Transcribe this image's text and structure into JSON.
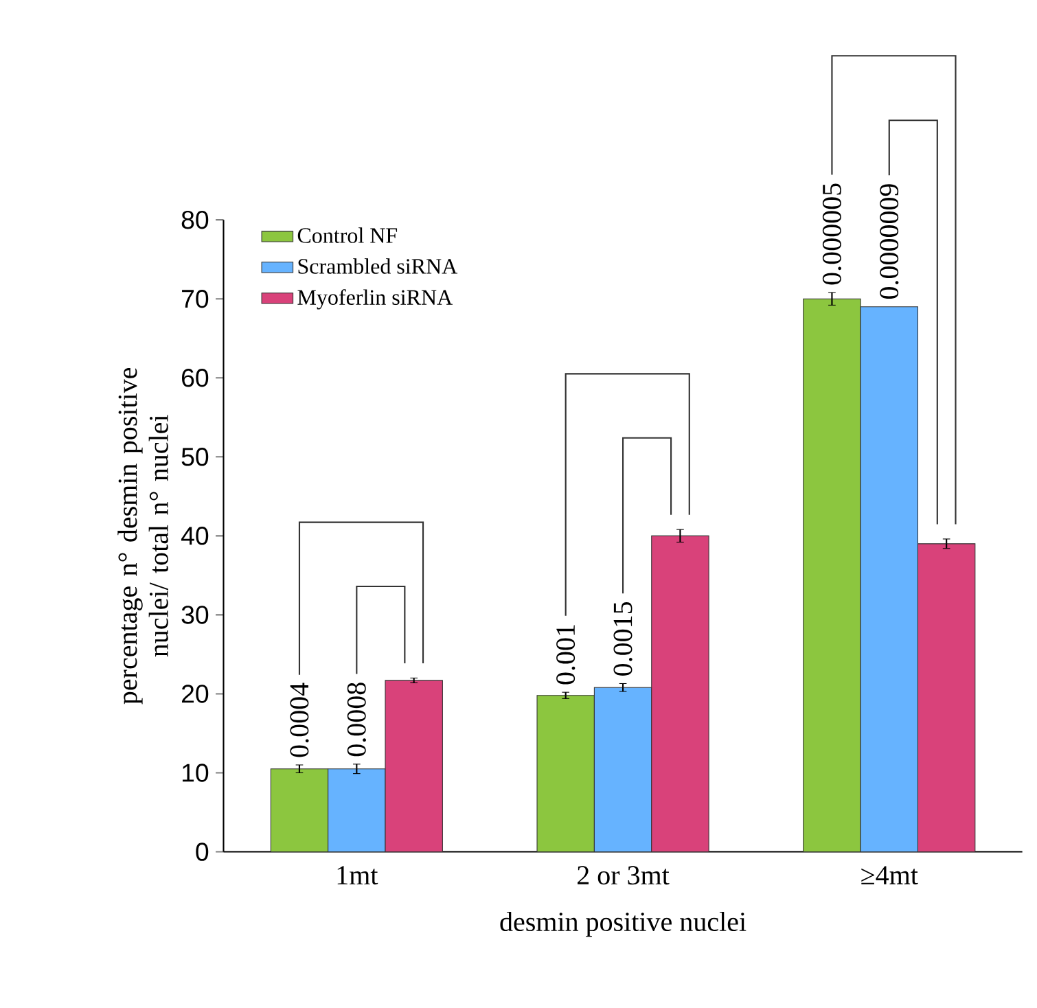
{
  "chart_data": {
    "type": "bar",
    "xlabel": "desmin positive nuclei",
    "ylabel": "percentage n° desmin positive nuclei/ total n° nuclei",
    "categories": [
      "1mt",
      "2 or 3mt",
      "≥4mt"
    ],
    "series": [
      {
        "name": "Control NF",
        "color": "#8cc63f",
        "values": [
          10.5,
          19.8,
          70
        ],
        "errors": [
          0.5,
          0.4,
          0.8
        ]
      },
      {
        "name": "Scrambled siRNA",
        "color": "#66b3ff",
        "values": [
          10.5,
          20.8,
          69
        ],
        "errors": [
          0.6,
          0.5,
          null
        ]
      },
      {
        "name": "Myoferlin siRNA",
        "color": "#d9427a",
        "values": [
          21.7,
          40,
          39
        ],
        "errors": [
          0.3,
          0.8,
          0.6
        ]
      }
    ],
    "annotations": [
      "0.0004",
      "0.0008",
      "0.001",
      "0.0015",
      "0.000005",
      "0.0000009"
    ],
    "ylim": [
      0,
      80
    ],
    "yticks": [
      0,
      10,
      20,
      30,
      40,
      50,
      60,
      70,
      80
    ],
    "legend": "top left",
    "grid": false
  }
}
